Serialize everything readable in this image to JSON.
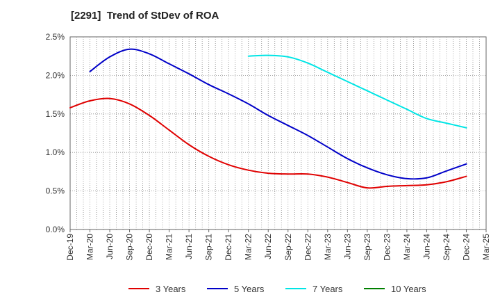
{
  "chart_data": {
    "type": "line",
    "title": "[2291]  Trend of StDev of ROA",
    "xlabel": "",
    "ylabel": "",
    "ylim": [
      0,
      2.5
    ],
    "yticks": [
      "0.0%",
      "0.5%",
      "1.0%",
      "1.5%",
      "2.0%",
      "2.5%"
    ],
    "x_categories": [
      "Dec-19",
      "Mar-20",
      "Jun-20",
      "Sep-20",
      "Dec-20",
      "Mar-21",
      "Jun-21",
      "Sep-21",
      "Dec-21",
      "Mar-22",
      "Jun-22",
      "Sep-22",
      "Dec-22",
      "Mar-23",
      "Jun-23",
      "Sep-23",
      "Dec-23",
      "Mar-24",
      "Jun-24",
      "Sep-24",
      "Dec-24",
      "Mar-25"
    ],
    "grid": true,
    "legend_position": "bottom",
    "series": [
      {
        "name": "3 Years",
        "color": "#e00000",
        "values": [
          1.58,
          1.67,
          1.7,
          1.63,
          1.48,
          1.29,
          1.1,
          0.95,
          0.84,
          0.77,
          0.73,
          0.72,
          0.72,
          0.68,
          0.61,
          0.54,
          0.56,
          0.57,
          0.58,
          0.62,
          0.69,
          null
        ]
      },
      {
        "name": "5 Years",
        "color": "#0000c8",
        "values": [
          null,
          2.05,
          2.24,
          2.34,
          2.28,
          2.15,
          2.02,
          1.88,
          1.76,
          1.63,
          1.48,
          1.35,
          1.22,
          1.07,
          0.92,
          0.8,
          0.71,
          0.66,
          0.67,
          0.76,
          0.85,
          null
        ]
      },
      {
        "name": "7 Years",
        "color": "#00e5e5",
        "values": [
          null,
          null,
          null,
          null,
          null,
          null,
          null,
          null,
          null,
          2.25,
          2.26,
          2.24,
          2.16,
          2.04,
          1.92,
          1.8,
          1.68,
          1.56,
          1.44,
          1.38,
          1.32,
          null
        ]
      },
      {
        "name": "10 Years",
        "color": "#008000",
        "values": [
          null,
          null,
          null,
          null,
          null,
          null,
          null,
          null,
          null,
          null,
          null,
          null,
          null,
          null,
          null,
          null,
          null,
          null,
          null,
          null,
          null,
          null
        ]
      }
    ]
  }
}
